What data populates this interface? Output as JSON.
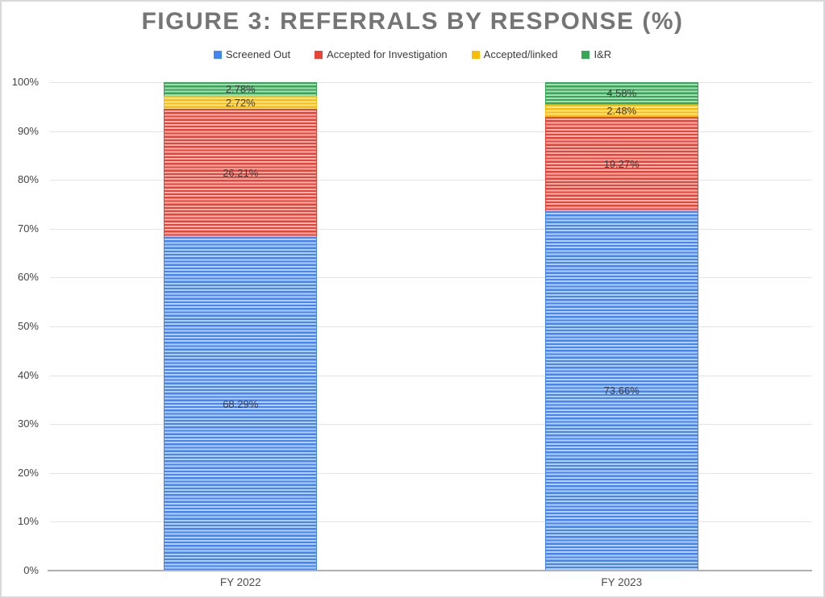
{
  "title": "FIGURE 3: REFERRALS BY RESPONSE (%)",
  "chart_data": {
    "type": "bar",
    "stacked": true,
    "unit": "%",
    "categories": [
      "FY 2022",
      "FY 2023"
    ],
    "series": [
      {
        "name": "Screened Out",
        "color": "#4285f4",
        "color_light": "#b9cef5",
        "values": [
          68.29,
          73.66
        ],
        "labels": [
          "68.29%",
          "73.66%"
        ]
      },
      {
        "name": "Accepted for Investigation",
        "color": "#ea4335",
        "color_light": "#f7b6b1",
        "values": [
          26.21,
          19.27
        ],
        "labels": [
          "26.21%",
          "19.27%"
        ]
      },
      {
        "name": "Accepted/linked",
        "color": "#fbbc04",
        "color_light": "#fde59b",
        "values": [
          2.72,
          2.48
        ],
        "labels": [
          "2.72%",
          "2.48%"
        ]
      },
      {
        "name": "I&R",
        "color": "#34a853",
        "color_light": "#add9bb",
        "values": [
          2.78,
          4.58
        ],
        "labels": [
          "2.78%",
          "4.58%"
        ]
      }
    ],
    "title": "FIGURE 3: REFERRALS BY RESPONSE (%)",
    "xlabel": "",
    "ylabel": "",
    "yticks": [
      "0%",
      "10%",
      "20%",
      "30%",
      "40%",
      "50%",
      "60%",
      "70%",
      "80%",
      "90%",
      "100%"
    ],
    "ylim": [
      0,
      100
    ],
    "grid": true,
    "legend_position": "top",
    "bar_pattern": "horizontal-stripes"
  },
  "colors": {
    "title_text": "#757575",
    "grid_line": "#e4e4e4",
    "axis_line": "#b0b0b0",
    "tick_label": "#444444",
    "data_label": "#3d3d3d",
    "legend_text": "#3c3c3c",
    "frame_border": "#d9d9d9",
    "background": "#ffffff"
  }
}
